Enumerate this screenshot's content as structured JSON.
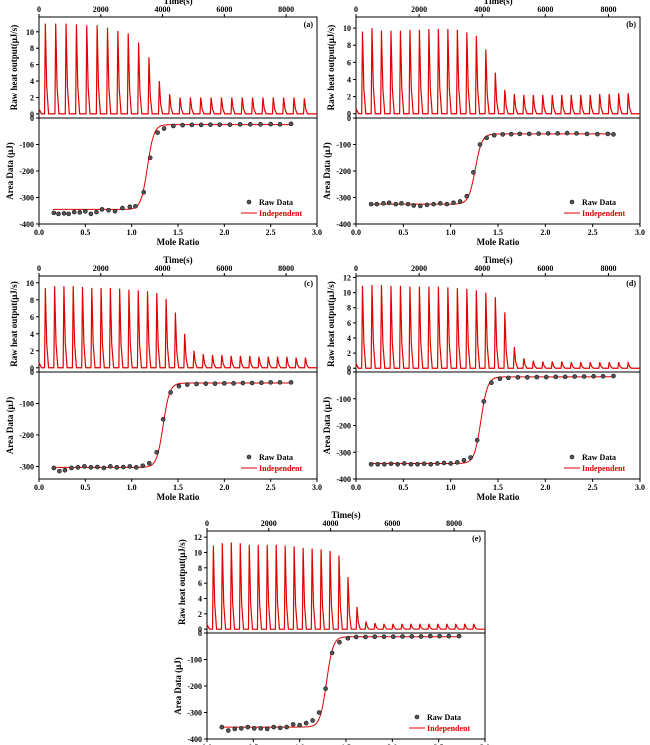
{
  "chart_data": [
    {
      "panel": "(a)",
      "type": "line",
      "top_xlabel": "Time(s)",
      "top_xticks": [
        0,
        2000,
        4000,
        6000,
        8000
      ],
      "top_xlim": [
        0,
        9000
      ],
      "top_ylabel": "Raw heat output(μJ/s)",
      "top_yticks": [
        0,
        2,
        4,
        6,
        8,
        10
      ],
      "top_ylim": [
        -0.5,
        11.8
      ],
      "peak_heights": [
        11.0,
        11.0,
        11.0,
        10.9,
        10.8,
        10.8,
        10.5,
        10.1,
        9.8,
        8.7,
        6.9,
        4.0,
        2.4,
        2.0,
        2.0,
        2.0,
        2.0,
        2.0,
        2.0,
        2.0,
        2.0,
        2.0,
        2.0,
        2.0,
        2.0,
        1.9
      ],
      "bottom_xlabel": "Mole Ratio",
      "bottom_xticks": [
        0.0,
        0.5,
        1.0,
        1.5,
        2.0,
        2.5,
        3.0
      ],
      "bottom_xlim": [
        0.0,
        3.0
      ],
      "bottom_ylabel": "Area Data (μJ)",
      "bottom_yticks": [
        0,
        -100,
        -200,
        -300,
        -400
      ],
      "bottom_ylim": [
        -400,
        0
      ],
      "raw_data": {
        "x": [
          0.16,
          0.21,
          0.27,
          0.32,
          0.38,
          0.44,
          0.5,
          0.56,
          0.62,
          0.68,
          0.75,
          0.82,
          0.9,
          0.98,
          1.04,
          1.13,
          1.2,
          1.28,
          1.35,
          1.45,
          1.55,
          1.65,
          1.75,
          1.85,
          1.95,
          2.06,
          2.17,
          2.28,
          2.39,
          2.5,
          2.6,
          2.72
        ],
        "y": [
          -358,
          -362,
          -360,
          -362,
          -355,
          -356,
          -352,
          -362,
          -355,
          -345,
          -348,
          -352,
          -340,
          -335,
          -333,
          -280,
          -150,
          -55,
          -40,
          -30,
          -27,
          -26,
          -26,
          -25,
          -25,
          -25,
          -24,
          -24,
          -24,
          -23,
          -24,
          -22
        ]
      },
      "fit": {
        "plateau_low": -345,
        "plateau_high": -25,
        "midpoint": 1.17,
        "width": 0.035,
        "x_start": 0.15,
        "x_end": 2.73
      },
      "legend": [
        "Raw Data",
        "Independent"
      ]
    },
    {
      "panel": "(b)",
      "type": "line",
      "top_xlabel": "Time(s)",
      "top_xticks": [
        0,
        2000,
        4000,
        6000,
        8000
      ],
      "top_xlim": [
        0,
        9000
      ],
      "top_ylabel": "Raw heat output(μJ/s)",
      "top_yticks": [
        0,
        2,
        4,
        6,
        8,
        10
      ],
      "top_ylim": [
        -0.5,
        11.3
      ],
      "peak_heights": [
        9.6,
        10.0,
        9.7,
        9.7,
        9.7,
        9.8,
        9.8,
        9.9,
        9.9,
        9.9,
        9.8,
        9.5,
        9.1,
        7.5,
        4.8,
        2.8,
        2.3,
        2.2,
        2.2,
        2.2,
        2.2,
        2.2,
        2.2,
        2.2,
        2.2,
        2.3,
        2.3,
        2.4,
        2.4
      ],
      "bottom_xlabel": "Mole Ratio",
      "bottom_xticks": [
        0.0,
        0.5,
        1.0,
        1.5,
        2.0,
        2.5,
        3.0
      ],
      "bottom_xlim": [
        0.0,
        3.0
      ],
      "bottom_ylabel": "Area Data (μJ)",
      "bottom_yticks": [
        0,
        -100,
        -200,
        -300,
        -400
      ],
      "bottom_ylim": [
        -400,
        0
      ],
      "raw_data": {
        "x": [
          0.16,
          0.22,
          0.29,
          0.35,
          0.42,
          0.48,
          0.55,
          0.61,
          0.68,
          0.75,
          0.82,
          0.89,
          0.96,
          1.03,
          1.1,
          1.17,
          1.24,
          1.31,
          1.38,
          1.46,
          1.55,
          1.64,
          1.73,
          1.83,
          1.93,
          2.03,
          2.13,
          2.23,
          2.33,
          2.44,
          2.55,
          2.66,
          2.72
        ],
        "y": [
          -325,
          -325,
          -322,
          -320,
          -325,
          -322,
          -325,
          -330,
          -332,
          -328,
          -325,
          -322,
          -325,
          -320,
          -315,
          -295,
          -205,
          -100,
          -75,
          -65,
          -62,
          -61,
          -60,
          -60,
          -59,
          -58,
          -58,
          -57,
          -58,
          -60,
          -61,
          -60,
          -62
        ]
      },
      "fit": {
        "plateau_low": -325,
        "plateau_high": -60,
        "midpoint": 1.26,
        "width": 0.035,
        "x_start": 0.15,
        "x_end": 2.73
      },
      "legend": [
        "Raw Data",
        "Independent"
      ]
    },
    {
      "panel": "(c)",
      "type": "line",
      "top_xlabel": "Time(s)",
      "top_xticks": [
        0,
        2000,
        4000,
        6000,
        8000
      ],
      "top_xlim": [
        0,
        9000
      ],
      "top_ylabel": "Raw heat output(μJ/s)",
      "top_yticks": [
        0,
        2,
        4,
        6,
        8,
        10
      ],
      "top_ylim": [
        -0.5,
        10.8
      ],
      "peak_heights": [
        9.4,
        9.6,
        9.6,
        9.6,
        9.5,
        9.4,
        9.4,
        9.4,
        9.3,
        9.2,
        9.1,
        9.0,
        8.8,
        8.1,
        6.5,
        4.0,
        2.0,
        1.6,
        1.5,
        1.5,
        1.4,
        1.4,
        1.4,
        1.3,
        1.3,
        1.3,
        1.3,
        1.2,
        1.2
      ],
      "bottom_xlabel": "Mole Ratio",
      "bottom_xticks": [
        0.0,
        0.5,
        1.0,
        1.5,
        2.0,
        2.5,
        3.0
      ],
      "bottom_xlim": [
        0.0,
        3.0
      ],
      "bottom_ylabel": "Area Data (μJ)",
      "bottom_yticks": [
        0,
        -100,
        -200,
        -300
      ],
      "bottom_ylim": [
        -340,
        0
      ],
      "raw_data": {
        "x": [
          0.16,
          0.22,
          0.28,
          0.35,
          0.42,
          0.49,
          0.56,
          0.63,
          0.7,
          0.77,
          0.84,
          0.91,
          0.98,
          1.05,
          1.12,
          1.19,
          1.27,
          1.34,
          1.42,
          1.51,
          1.6,
          1.7,
          1.8,
          1.9,
          2.0,
          2.1,
          2.2,
          2.3,
          2.4,
          2.5,
          2.6,
          2.72
        ],
        "y": [
          -305,
          -315,
          -312,
          -305,
          -303,
          -300,
          -303,
          -302,
          -305,
          -300,
          -303,
          -302,
          -300,
          -303,
          -298,
          -290,
          -255,
          -150,
          -65,
          -45,
          -40,
          -38,
          -37,
          -37,
          -36,
          -36,
          -35,
          -35,
          -34,
          -33,
          -33,
          -33
        ]
      },
      "fit": {
        "plateau_low": -303,
        "plateau_high": -35,
        "midpoint": 1.34,
        "width": 0.035,
        "x_start": 0.15,
        "x_end": 2.73
      },
      "legend": [
        "Raw Data",
        "Independent"
      ]
    },
    {
      "panel": "(d)",
      "type": "line",
      "top_xlabel": "Time(s)",
      "top_xticks": [
        0,
        2000,
        4000,
        6000,
        8000
      ],
      "top_xlim": [
        0,
        9000
      ],
      "top_ylabel": "Raw heat output(μJ/s)",
      "top_yticks": [
        0,
        2,
        4,
        6,
        8,
        10,
        12
      ],
      "top_ylim": [
        -0.5,
        12.2
      ],
      "peak_heights": [
        10.9,
        11.0,
        11.0,
        10.9,
        10.9,
        10.8,
        10.8,
        10.8,
        10.8,
        10.7,
        10.6,
        10.5,
        10.3,
        10.0,
        9.4,
        7.4,
        2.8,
        1.3,
        1.0,
        0.9,
        0.9,
        0.9,
        0.8,
        0.8,
        0.8,
        0.8,
        0.8,
        0.8,
        0.7
      ],
      "bottom_xlabel": "Mole Ratio",
      "bottom_xticks": [
        0.0,
        0.5,
        1.0,
        1.5,
        2.0,
        2.5,
        3.0
      ],
      "bottom_xlim": [
        0.0,
        3.0
      ],
      "bottom_ylabel": "Area Data (μJ)",
      "bottom_yticks": [
        0,
        -100,
        -200,
        -300,
        -400
      ],
      "bottom_ylim": [
        -400,
        0
      ],
      "raw_data": {
        "x": [
          0.16,
          0.23,
          0.3,
          0.37,
          0.44,
          0.51,
          0.58,
          0.65,
          0.72,
          0.79,
          0.86,
          0.93,
          1.0,
          1.07,
          1.14,
          1.21,
          1.28,
          1.35,
          1.43,
          1.52,
          1.61,
          1.71,
          1.81,
          1.91,
          2.01,
          2.11,
          2.21,
          2.31,
          2.41,
          2.51,
          2.61,
          2.72
        ],
        "y": [
          -345,
          -345,
          -345,
          -343,
          -345,
          -342,
          -345,
          -345,
          -343,
          -345,
          -342,
          -340,
          -342,
          -338,
          -330,
          -320,
          -255,
          -110,
          -40,
          -25,
          -22,
          -20,
          -20,
          -19,
          -19,
          -18,
          -18,
          -17,
          -17,
          -16,
          -16,
          -15
        ]
      },
      "fit": {
        "plateau_low": -342,
        "plateau_high": -18,
        "midpoint": 1.32,
        "width": 0.035,
        "x_start": 0.15,
        "x_end": 2.73
      },
      "legend": [
        "Raw Data",
        "Independent"
      ]
    },
    {
      "panel": "(e)",
      "type": "line",
      "top_xlabel": "Time(s)",
      "top_xticks": [
        0,
        2000,
        4000,
        6000,
        8000
      ],
      "top_xlim": [
        0,
        9000
      ],
      "top_ylabel": "Raw heat output(μJ/s)",
      "top_yticks": [
        0,
        2,
        4,
        6,
        8,
        10,
        12
      ],
      "top_ylim": [
        -0.5,
        12.8
      ],
      "peak_heights": [
        10.9,
        11.2,
        11.3,
        11.2,
        11.0,
        11.0,
        11.0,
        11.0,
        10.9,
        10.8,
        10.6,
        10.5,
        10.4,
        10.2,
        9.6,
        6.8,
        2.9,
        1.0,
        0.8,
        0.7,
        0.7,
        0.7,
        0.7,
        0.7,
        0.7,
        0.7,
        0.7,
        0.7,
        0.7,
        0.7
      ],
      "bottom_xlabel": "Mole Ratio",
      "bottom_xticks": [
        0.0,
        0.5,
        1.0,
        1.5,
        2.0,
        2.5,
        3.0
      ],
      "bottom_xlim": [
        0.0,
        3.0
      ],
      "bottom_ylabel": "Area Data (μJ)",
      "bottom_yticks": [
        0,
        -100,
        -200,
        -300,
        -400
      ],
      "bottom_ylim": [
        -400,
        0
      ],
      "raw_data": {
        "x": [
          0.16,
          0.23,
          0.3,
          0.37,
          0.44,
          0.51,
          0.58,
          0.65,
          0.72,
          0.79,
          0.86,
          0.93,
          1.0,
          1.07,
          1.14,
          1.21,
          1.28,
          1.35,
          1.43,
          1.52,
          1.61,
          1.71,
          1.81,
          1.91,
          2.01,
          2.11,
          2.21,
          2.31,
          2.41,
          2.51,
          2.61,
          2.72
        ],
        "y": [
          -355,
          -368,
          -362,
          -360,
          -355,
          -360,
          -360,
          -362,
          -355,
          -358,
          -355,
          -345,
          -348,
          -340,
          -330,
          -300,
          -210,
          -75,
          -35,
          -20,
          -15,
          -15,
          -14,
          -14,
          -14,
          -13,
          -13,
          -13,
          -12,
          -12,
          -12,
          -12
        ]
      },
      "fit": {
        "plateau_low": -355,
        "plateau_high": -14,
        "midpoint": 1.29,
        "width": 0.035,
        "x_start": 0.15,
        "x_end": 2.73
      },
      "legend": [
        "Raw Data",
        "Independent"
      ]
    }
  ]
}
